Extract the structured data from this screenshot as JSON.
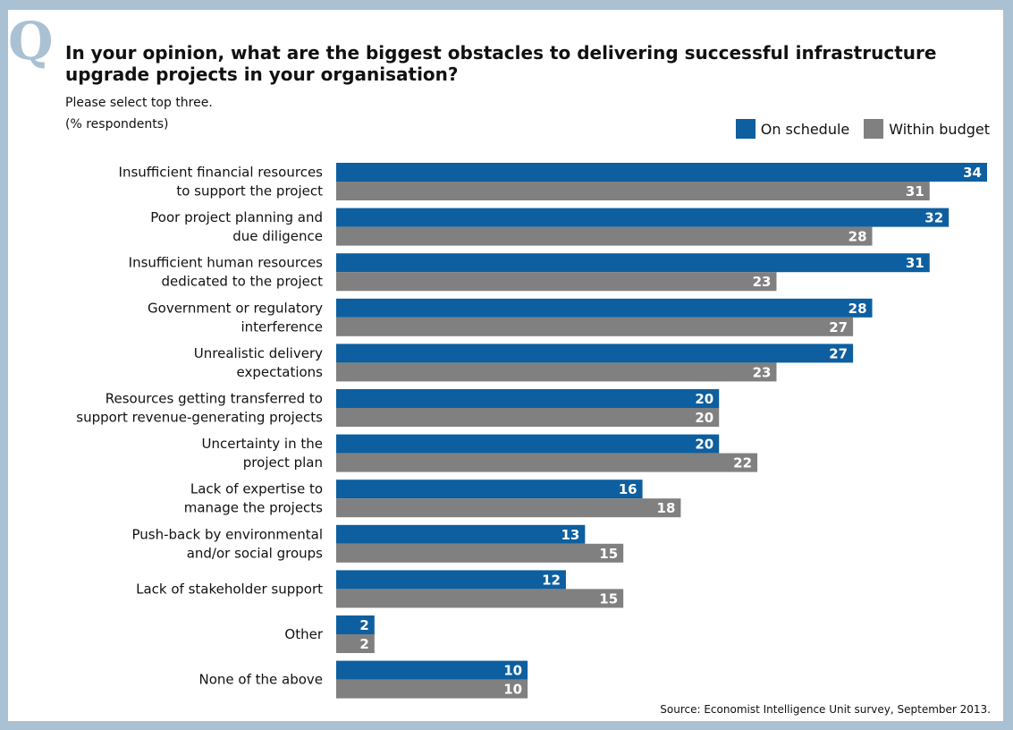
{
  "header": {
    "q_mark": "Q",
    "title": "In your opinion, what are the biggest obstacles to delivering successful infrastructure upgrade projects in your organisation?",
    "subtitle": "Please select top three.",
    "unit": "(% respondents)",
    "source": "Source: Economist Intelligence Unit survey, September 2013."
  },
  "colors": {
    "background": "#a9c1d3",
    "on_schedule": "#0d5fa0",
    "within_budget": "#808080",
    "label_text": "#ffffff"
  },
  "chart_data": {
    "type": "bar",
    "orientation": "horizontal",
    "categories": [
      [
        "Insufficient financial resources",
        "to support the project"
      ],
      [
        "Poor project planning and",
        "due diligence"
      ],
      [
        "Insufficient human resources",
        "dedicated to the project"
      ],
      [
        "Government or regulatory",
        "interference"
      ],
      [
        "Unrealistic delivery",
        "expectations"
      ],
      [
        "Resources getting transferred to",
        "support revenue-generating projects"
      ],
      [
        "Uncertainty in the",
        "project plan"
      ],
      [
        "Lack of expertise to",
        "manage the projects"
      ],
      [
        "Push-back by environmental",
        "and/or social groups"
      ],
      [
        "Lack of stakeholder support"
      ],
      [
        "Other"
      ],
      [
        "None of the above"
      ]
    ],
    "series": [
      {
        "name": "On schedule",
        "values": [
          34,
          32,
          31,
          28,
          27,
          20,
          20,
          16,
          13,
          12,
          2,
          10
        ]
      },
      {
        "name": "Within budget",
        "values": [
          31,
          28,
          23,
          27,
          23,
          20,
          22,
          18,
          15,
          15,
          2,
          10
        ]
      }
    ],
    "xlim": [
      0,
      34
    ],
    "legend_position": "top-right",
    "grid": false,
    "data_labels": true
  }
}
